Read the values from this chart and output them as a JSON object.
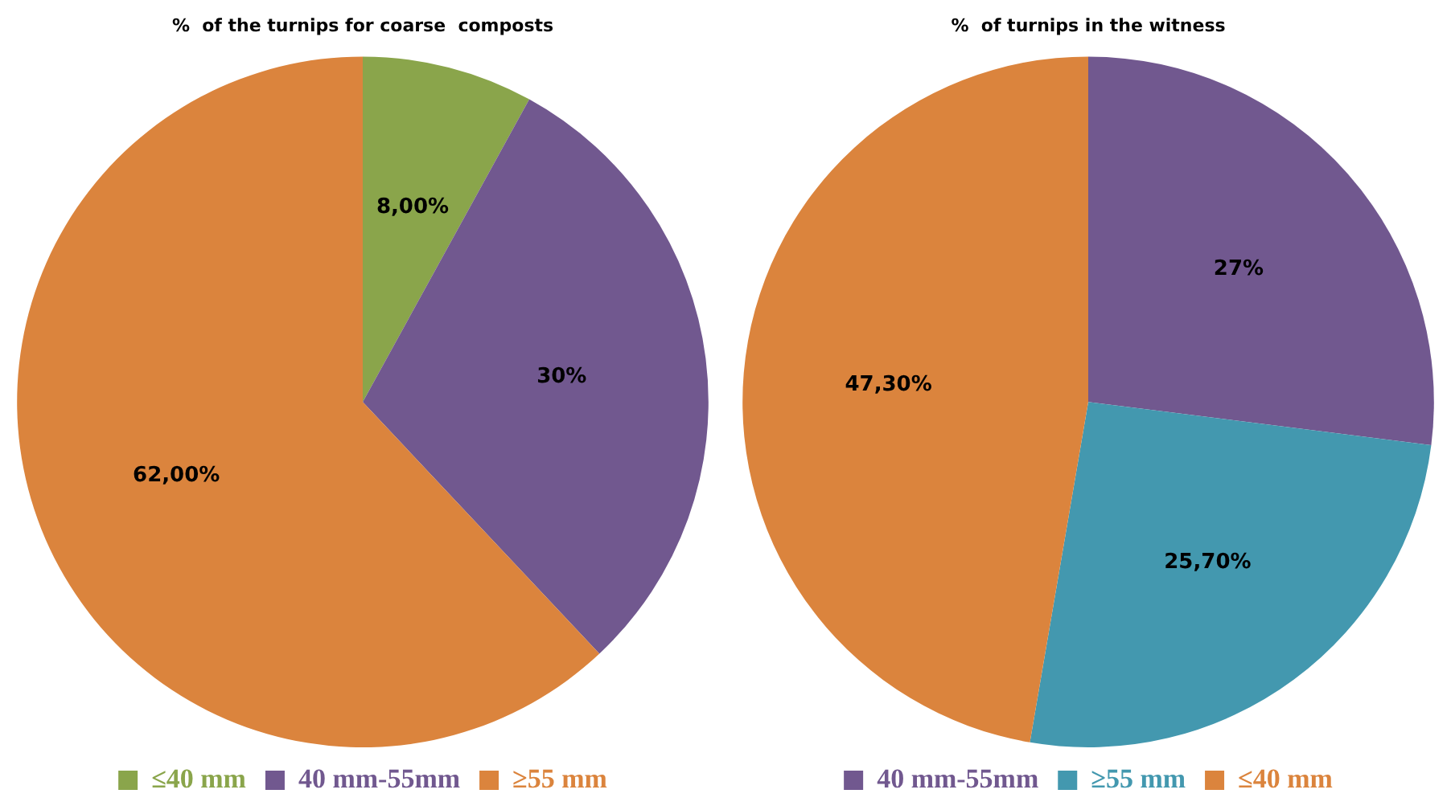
{
  "chart_data": [
    {
      "type": "pie",
      "title": "%  of the turnips for coarse  composts",
      "categories": [
        "≤40 mm",
        "40 mm-55mm",
        "≥55 mm"
      ],
      "values": [
        8,
        30,
        62
      ],
      "colors": [
        "#8aa54b",
        "#71588f",
        "#db843d"
      ],
      "value_labels": [
        "8,00%",
        "30%",
        "62,00%"
      ],
      "legend": "bottom"
    },
    {
      "type": "pie",
      "title": "%  of turnips in the witness",
      "categories": [
        "40 mm-55mm",
        "≥55 mm",
        "≤40 mm"
      ],
      "values": [
        27,
        25.7,
        47.3
      ],
      "colors": [
        "#71588f",
        "#4398af",
        "#db843d"
      ],
      "value_labels": [
        "27%",
        "25,70%",
        "47,30%"
      ],
      "legend": "bottom"
    }
  ]
}
